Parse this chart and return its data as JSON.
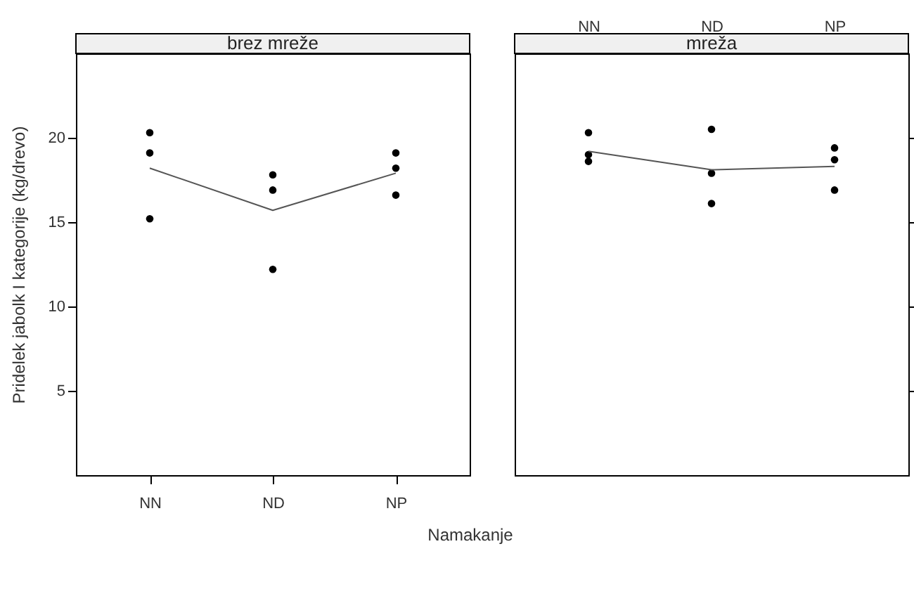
{
  "chart_data": [
    {
      "type": "scatter",
      "title": "brez mreže",
      "xlabel": "Namakanje",
      "ylabel": "Pridelek jabolk I kategorije (kg/drevo)",
      "categories": [
        "NN",
        "ND",
        "NP"
      ],
      "ylim": [
        0,
        25
      ],
      "yticks": [
        5,
        10,
        15,
        20
      ],
      "series": [
        {
          "marker": "circle",
          "color": "#000000",
          "x": [
            "NN",
            "NN",
            "NN",
            "ND",
            "ND",
            "ND",
            "NP",
            "NP",
            "NP"
          ],
          "values": [
            20.3,
            19.1,
            15.2,
            17.8,
            16.9,
            12.2,
            19.1,
            18.2,
            16.6
          ]
        },
        {
          "type": "line",
          "color": "#555555",
          "values": [
            18.2,
            15.7,
            17.9
          ]
        }
      ]
    },
    {
      "type": "scatter",
      "title": "mreža",
      "categories": [
        "NN",
        "ND",
        "NP"
      ],
      "ylim": [
        0,
        25
      ],
      "yticks": [
        5,
        10,
        15,
        20
      ],
      "tick_labels": "x",
      "series": [
        {
          "marker": "circle",
          "color": "#000000",
          "x": [
            "NN",
            "NN",
            "NN",
            "ND",
            "ND",
            "ND",
            "NP",
            "NP",
            "NP"
          ],
          "values": [
            20.3,
            19.0,
            18.6,
            20.5,
            17.9,
            16.1,
            19.4,
            18.7,
            16.9
          ]
        },
        {
          "type": "line",
          "color": "#555555",
          "values": [
            19.2,
            18.1,
            18.3
          ]
        }
      ]
    }
  ]
}
